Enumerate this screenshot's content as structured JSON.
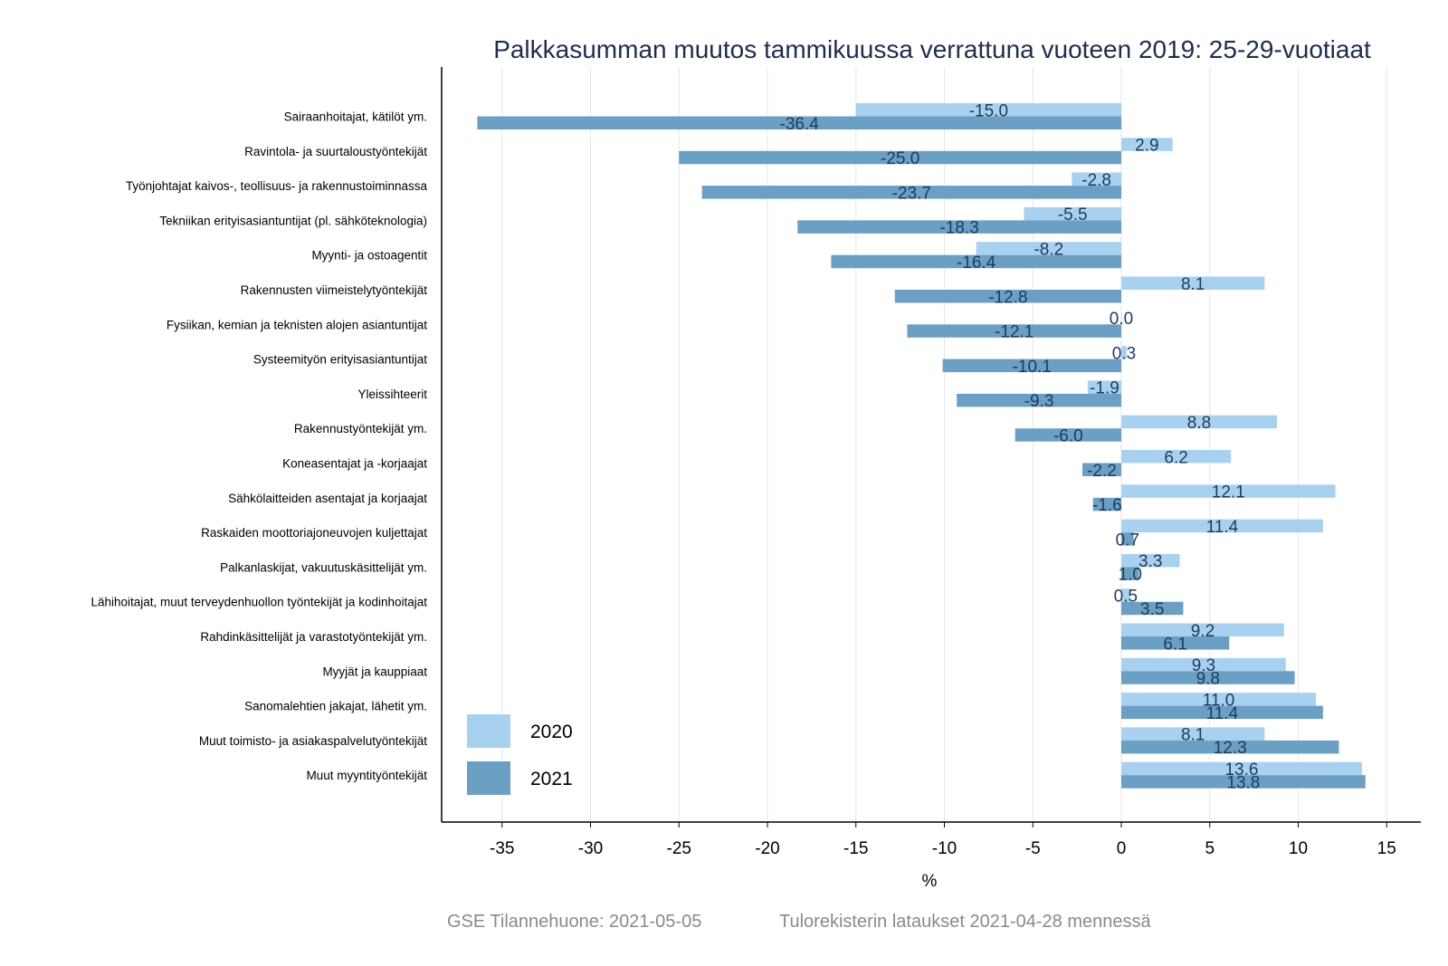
{
  "chart_data": {
    "type": "bar",
    "orientation": "horizontal",
    "title": "Palkkasumman muutos tammikuussa verrattuna vuoteen 2019: 25-29-vuotiaat",
    "xlabel": "%",
    "ylabel": "",
    "xlim": [
      -38.5,
      16.8
    ],
    "xticks": [
      -35,
      -30,
      -25,
      -20,
      -15,
      -10,
      -5,
      0,
      5,
      10,
      15
    ],
    "grid": "vertical",
    "legend_position": "bottom-left",
    "categories": [
      "Sairaanhoitajat, kätilöt ym.",
      "Ravintola- ja suurtaloustyöntekijät",
      "Työnjohtajat kaivos-, teollisuus- ja rakennustoiminnassa",
      "Tekniikan erityisasiantuntijat (pl. sähköteknologia)",
      "Myynti- ja ostoagentit",
      "Rakennusten viimeistelytyöntekijät",
      "Fysiikan, kemian ja teknisten alojen asiantuntijat",
      "Systeemityön erityisasiantuntijat",
      "Yleissihteerit",
      "Rakennustyöntekijät ym.",
      "Koneasentajat ja -korjaajat",
      "Sähkölaitteiden asentajat ja korjaajat",
      "Raskaiden moottoriajoneuvojen kuljettajat",
      "Palkanlaskijat, vakuutuskäsittelijät ym.",
      "Lähihoitajat, muut terveydenhuollon työntekijät ja kodinhoitajat",
      "Rahdinkäsittelijät ja varastotyöntekijät ym.",
      "Myyjät ja kauppiaat",
      "Sanomalehtien jakajat, lähetit ym.",
      "Muut toimisto- ja asiakaspalvelutyöntekijät",
      "Muut myyntityöntekijät"
    ],
    "series": [
      {
        "name": "2020",
        "color": "#a8d1ef",
        "values": [
          -15.0,
          2.9,
          -2.8,
          -5.5,
          -8.2,
          8.1,
          0.0,
          0.3,
          -1.9,
          8.8,
          6.2,
          12.1,
          11.4,
          3.3,
          0.5,
          9.2,
          9.3,
          11.0,
          8.1,
          13.6
        ],
        "labels": [
          "-15.0",
          "2.9",
          "-2.8",
          "-5.5",
          "-8.2",
          "8.1",
          "0.0",
          "0.3",
          "-1.9",
          "8.8",
          "6.2",
          "12.1",
          "11.4",
          "3.3",
          "0.5",
          "9.2",
          "9.3",
          "11.0",
          "8.1",
          "13.6"
        ]
      },
      {
        "name": "2021",
        "color": "#6b9fc4",
        "values": [
          -36.4,
          -25.0,
          -23.7,
          -18.3,
          -16.4,
          -12.8,
          -12.1,
          -10.1,
          -9.3,
          -6.0,
          -2.2,
          -1.6,
          0.7,
          1.0,
          3.5,
          6.1,
          9.8,
          11.4,
          12.3,
          13.8
        ],
        "labels": [
          "-36.4",
          "-25.0",
          "-23.7",
          "-18.3",
          "-16.4",
          "-12.8",
          "-12.1",
          "-10.1",
          "-9.3",
          "-6.0",
          "-2.2",
          "-1.6",
          "0.7",
          "1.0",
          "3.5",
          "6.1",
          "9.8",
          "11.4",
          "12.3",
          "13.8"
        ]
      }
    ]
  },
  "footer": {
    "source": "GSE Tilannehuone: 2021-05-05",
    "note": "Tulorekisterin lataukset 2021-04-28 mennessä"
  }
}
